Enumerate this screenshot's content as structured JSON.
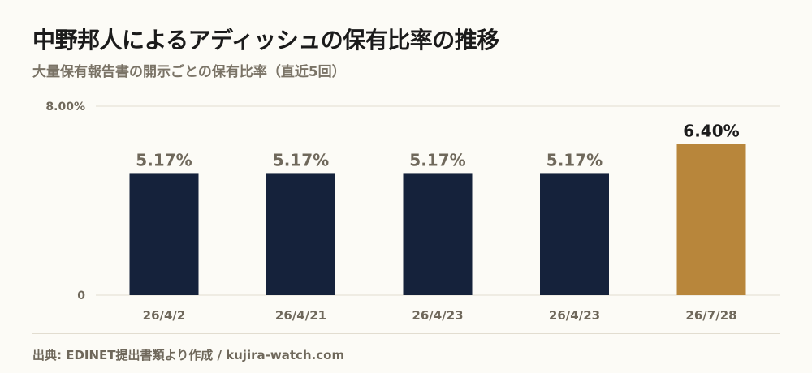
{
  "header": {
    "title": "中野邦人によるアディッシュの保有比率の推移",
    "subtitle": "大量保有報告書の開示ごとの保有比率（直近5回）"
  },
  "footer": {
    "source": "出典: EDINET提出書類より作成 / kujira-watch.com"
  },
  "colors": {
    "bar_default": "#15223b",
    "bar_highlight": "#b8863b",
    "label_default": "#6f685b",
    "label_highlight": "#1b1b1b",
    "grid": "#e2ddd0"
  },
  "chart_data": {
    "type": "bar",
    "categories": [
      "26/4/2",
      "26/4/21",
      "26/4/23",
      "26/4/23",
      "26/7/28"
    ],
    "values": [
      5.17,
      5.17,
      5.17,
      5.17,
      6.4
    ],
    "value_labels": [
      "5.17%",
      "5.17%",
      "5.17%",
      "5.17%",
      "6.40%"
    ],
    "highlight_index": 4,
    "ylim": [
      0,
      8
    ],
    "yticks": [
      {
        "value": 0,
        "label": "0"
      },
      {
        "value": 8,
        "label": "8.00%"
      }
    ],
    "grid": true,
    "title": "中野邦人によるアディッシュの保有比率の推移",
    "xlabel": "",
    "ylabel": ""
  }
}
